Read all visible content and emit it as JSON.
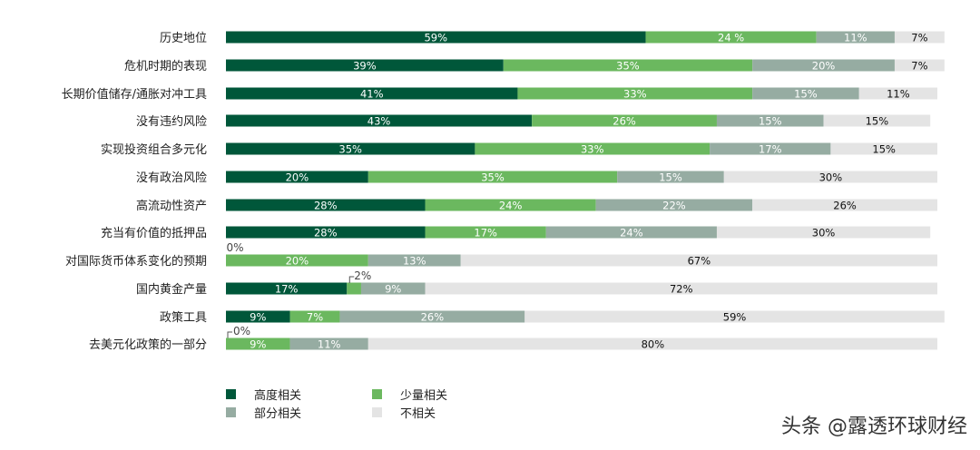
{
  "chart_data": {
    "type": "bar",
    "orientation": "horizontal",
    "stacked": true,
    "categories": [
      "历史地位",
      "危机时期的表现",
      "长期价值储存/通胀对冲工具",
      "没有违约风险",
      "实现投资组合多元化",
      "没有政治风险",
      "高流动性资产",
      "充当有价值的抵押品",
      "对国际货币体系变化的预期",
      "国内黄金产量",
      "政策工具",
      "去美元化政策的一部分"
    ],
    "series": [
      {
        "name": "高度相关",
        "color": "#00573a",
        "values": [
          59,
          39,
          41,
          43,
          35,
          20,
          28,
          28,
          0,
          17,
          9,
          0
        ],
        "labels": [
          "59%",
          "39%",
          "41%",
          "43%",
          "35%",
          "20%",
          "28%",
          "28%",
          "0%",
          "17%",
          "9%",
          "0%"
        ]
      },
      {
        "name": "少量相关",
        "color": "#6bb85f",
        "values": [
          24,
          35,
          33,
          26,
          33,
          35,
          24,
          17,
          20,
          2,
          7,
          9
        ],
        "labels": [
          "24 %",
          "35%",
          "33%",
          "26%",
          "33%",
          "35%",
          "24%",
          "17%",
          "20%",
          "2%",
          "7%",
          "9%"
        ]
      },
      {
        "name": "部分相关",
        "color": "#96aca2",
        "values": [
          11,
          20,
          15,
          15,
          17,
          15,
          22,
          24,
          13,
          9,
          26,
          11
        ],
        "labels": [
          "11%",
          "20%",
          "15%",
          "15%",
          "17%",
          "15%",
          "22%",
          "24%",
          "13%",
          "9%",
          "26%",
          "11%"
        ]
      },
      {
        "name": "不相关",
        "color": "#e4e4e4",
        "values": [
          7,
          7,
          11,
          15,
          15,
          30,
          26,
          30,
          67,
          72,
          59,
          80
        ],
        "labels": [
          "7%",
          "7%",
          "11%",
          "15%",
          "15%",
          "30%",
          "26%",
          "30%",
          "67%",
          "72%",
          "59%",
          "80%"
        ]
      }
    ],
    "xlim": [
      0,
      100
    ],
    "grid": false,
    "legend_position": "bottom-left"
  },
  "watermark": "头条 @露透环球财经"
}
